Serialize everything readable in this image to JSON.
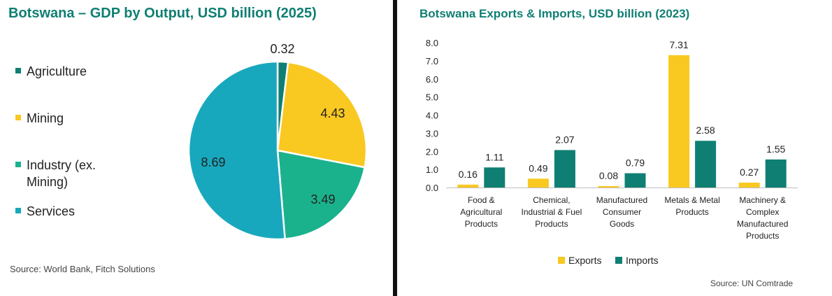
{
  "pie": {
    "title": "Botswana – GDP by Output, USD billion (2025)",
    "source": "Source: World Bank, Fitch Solutions",
    "legend": [
      {
        "label": "Agriculture",
        "color": "#0f7f73"
      },
      {
        "label": "Mining",
        "color": "#f9c821"
      },
      {
        "label": "Industry (ex.",
        "label2": "Mining)",
        "color": "#1ab28c"
      },
      {
        "label": "Services",
        "color": "#18a8bd"
      }
    ]
  },
  "bar": {
    "title": "Botswana Exports & Imports, USD billion (2023)",
    "source": "Source: UN Comtrade",
    "legend": [
      {
        "label": "Exports",
        "color": "#f9c821"
      },
      {
        "label": "Imports",
        "color": "#0f7f73"
      }
    ]
  },
  "chart_data": [
    {
      "type": "pie",
      "title": "Botswana – GDP by Output, USD billion (2025)",
      "categories": [
        "Agriculture",
        "Mining",
        "Industry (ex. Mining)",
        "Services"
      ],
      "values": [
        0.32,
        4.43,
        3.49,
        8.69
      ],
      "labels": [
        "0.32",
        "4.43",
        "3.49",
        "8.69"
      ],
      "colors": [
        "#0f7f73",
        "#f9c821",
        "#1ab28c",
        "#18a8bd"
      ],
      "legend": "left"
    },
    {
      "type": "bar",
      "title": "Botswana Exports & Imports, USD billion (2023)",
      "categories": [
        [
          "Food &",
          "Agricultural",
          "Products"
        ],
        [
          "Chemical,",
          "Industrial & Fuel",
          "Products"
        ],
        [
          "Manufactured",
          "Consumer",
          "Goods"
        ],
        [
          "Metals & Metal",
          "Products"
        ],
        [
          "Machinery &",
          "Complex",
          "Manufactured",
          "Products"
        ]
      ],
      "series": [
        {
          "name": "Exports",
          "values": [
            0.16,
            0.49,
            0.08,
            7.31,
            0.27
          ],
          "labels": [
            "0.16",
            "0.49",
            "0.08",
            "7.31",
            "0.27"
          ],
          "color": "#f9c821"
        },
        {
          "name": "Imports",
          "values": [
            1.11,
            2.07,
            0.79,
            2.58,
            1.55
          ],
          "labels": [
            "1.11",
            "2.07",
            "0.79",
            "2.58",
            "1.55"
          ],
          "color": "#0f7f73"
        }
      ],
      "ylim": [
        0,
        8
      ],
      "yticks": [
        "0.0",
        "1.0",
        "2.0",
        "3.0",
        "4.0",
        "5.0",
        "6.0",
        "7.0",
        "8.0"
      ],
      "legend": "bottom"
    }
  ]
}
